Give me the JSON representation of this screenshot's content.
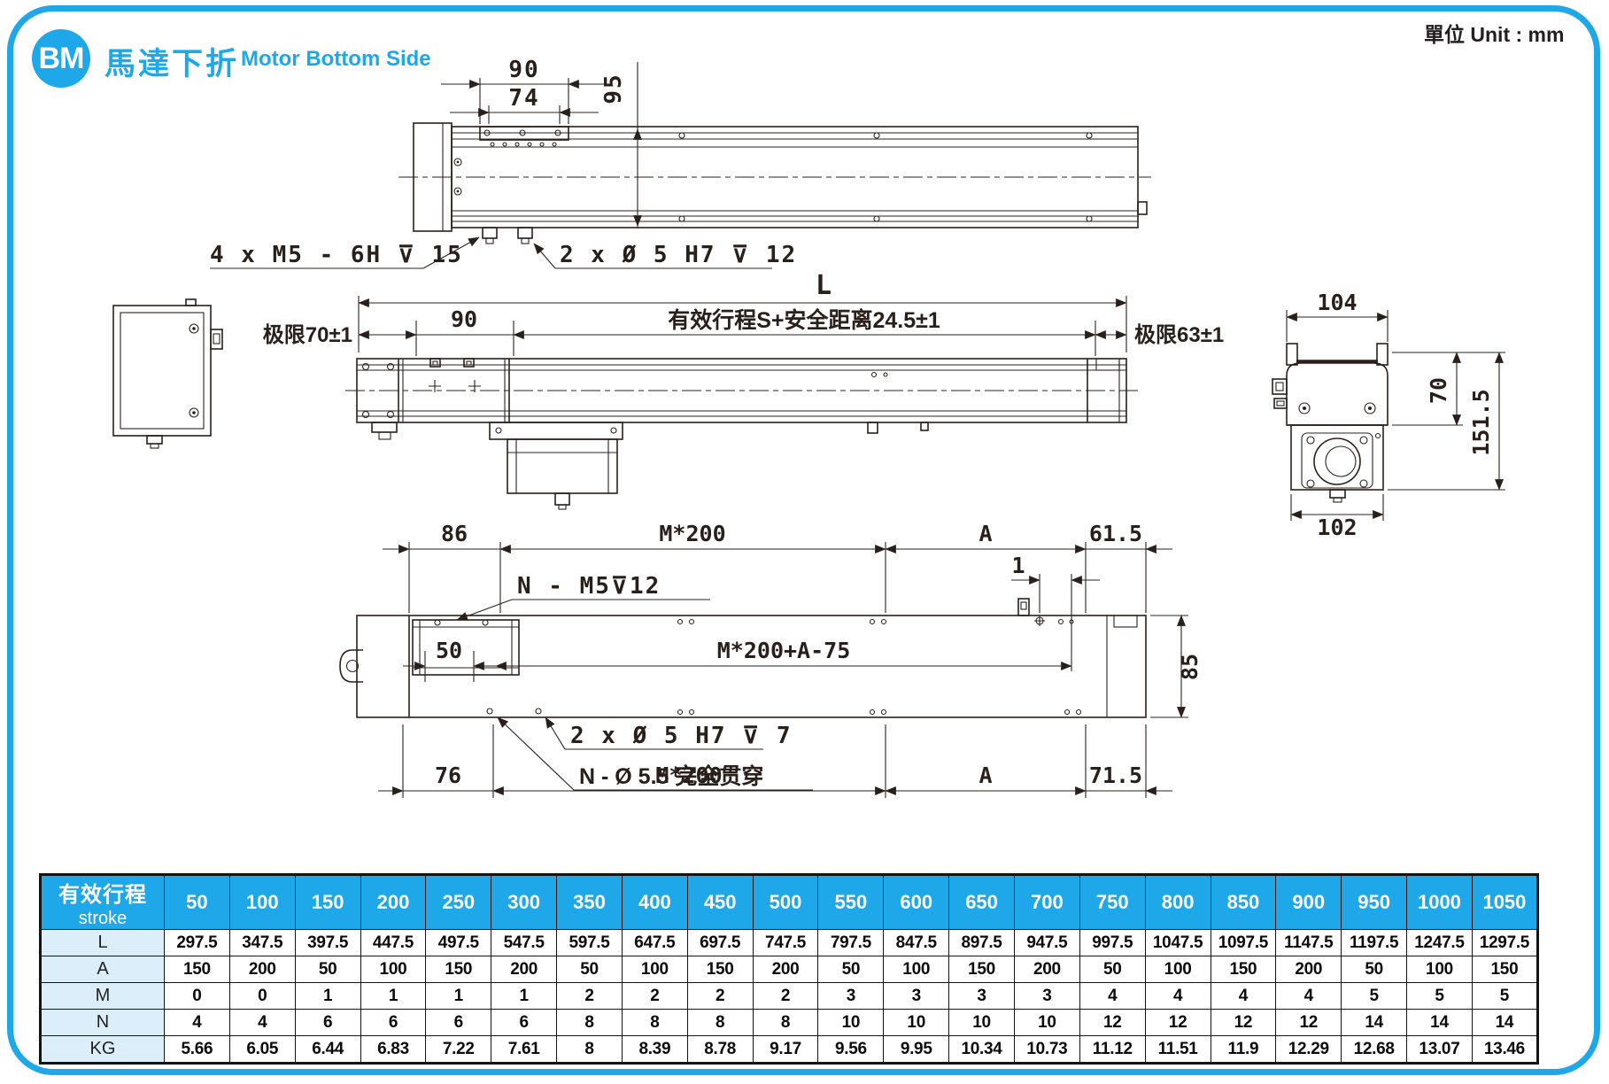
{
  "header": {
    "badge": "BM",
    "title_cjk": "馬達下折",
    "title_en": "Motor Bottom Side",
    "unit": "單位 Unit : mm"
  },
  "colors": {
    "accent": "#1EA7E9",
    "line": "#2A201B",
    "table_label_bg": "#DCEEF9"
  },
  "drawing_top": {
    "dim_90": "90",
    "dim_74": "74",
    "dim_95": "95",
    "callout_tap": "4 x M5 - 6H ⊽ 15",
    "callout_dowel": "2 x Ø 5 H7 ⊽ 12"
  },
  "drawing_middle": {
    "dim_L": "L",
    "limit_left": "极限70±1",
    "dim_90": "90",
    "stroke_note": "有效行程S+安全距离24.5±1",
    "limit_right": "极限63±1",
    "end_view": {
      "dim_104": "104",
      "dim_70": "70",
      "dim_151_5": "151.5",
      "dim_102": "102"
    }
  },
  "drawing_bottom": {
    "dim_86": "86",
    "dim_m200_top": "M*200",
    "dim_a_top": "A",
    "dim_61_5": "61.5",
    "callout_tap": "N - M5⊽12",
    "dim_1": "1",
    "dim_50": "50",
    "dim_travel": "M*200+A-75",
    "dim_85": "85",
    "callout_dowel": "2 x Ø 5 H7 ⊽ 7",
    "callout_through": "N - Ø 5.5 完全贯穿",
    "dim_76": "76",
    "dim_m200_bottom": "M*200",
    "dim_a_bottom": "A",
    "dim_71_5": "71.5"
  },
  "table": {
    "header_cjk": "有效行程",
    "header_en": "stroke",
    "strokes": [
      "50",
      "100",
      "150",
      "200",
      "250",
      "300",
      "350",
      "400",
      "450",
      "500",
      "550",
      "600",
      "650",
      "700",
      "750",
      "800",
      "850",
      "900",
      "950",
      "1000",
      "1050"
    ],
    "rows": [
      {
        "label": "L",
        "values": [
          "297.5",
          "347.5",
          "397.5",
          "447.5",
          "497.5",
          "547.5",
          "597.5",
          "647.5",
          "697.5",
          "747.5",
          "797.5",
          "847.5",
          "897.5",
          "947.5",
          "997.5",
          "1047.5",
          "1097.5",
          "1147.5",
          "1197.5",
          "1247.5",
          "1297.5"
        ]
      },
      {
        "label": "A",
        "values": [
          "150",
          "200",
          "50",
          "100",
          "150",
          "200",
          "50",
          "100",
          "150",
          "200",
          "50",
          "100",
          "150",
          "200",
          "50",
          "100",
          "150",
          "200",
          "50",
          "100",
          "150"
        ]
      },
      {
        "label": "M",
        "values": [
          "0",
          "0",
          "1",
          "1",
          "1",
          "1",
          "2",
          "2",
          "2",
          "2",
          "3",
          "3",
          "3",
          "3",
          "4",
          "4",
          "4",
          "4",
          "5",
          "5",
          "5"
        ]
      },
      {
        "label": "N",
        "values": [
          "4",
          "4",
          "6",
          "6",
          "6",
          "6",
          "8",
          "8",
          "8",
          "8",
          "10",
          "10",
          "10",
          "10",
          "12",
          "12",
          "12",
          "12",
          "14",
          "14",
          "14"
        ]
      },
      {
        "label": "KG",
        "values": [
          "5.66",
          "6.05",
          "6.44",
          "6.83",
          "7.22",
          "7.61",
          "8",
          "8.39",
          "8.78",
          "9.17",
          "9.56",
          "9.95",
          "10.34",
          "10.73",
          "11.12",
          "11.51",
          "11.9",
          "12.29",
          "12.68",
          "13.07",
          "13.46"
        ]
      }
    ]
  }
}
